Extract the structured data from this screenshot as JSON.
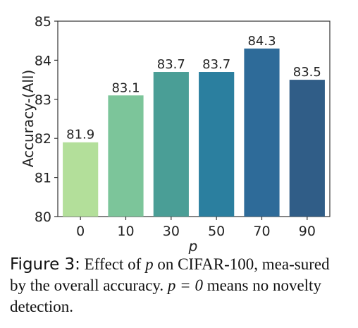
{
  "chart_data": {
    "type": "bar",
    "categories": [
      "0",
      "10",
      "30",
      "50",
      "70",
      "90"
    ],
    "values": [
      81.9,
      83.1,
      83.7,
      83.7,
      84.3,
      83.5
    ],
    "value_labels": [
      "81.9",
      "83.1",
      "83.7",
      "83.7",
      "84.3",
      "83.5"
    ],
    "colors": [
      "#b3df9a",
      "#7cc59a",
      "#4a9e96",
      "#2b7f9f",
      "#2e6b99",
      "#305d87"
    ],
    "title": "",
    "xlabel": "p",
    "ylabel": "Accuracy-(All)",
    "ylim": [
      80,
      85
    ],
    "yticks": [
      80,
      81,
      82,
      83,
      84,
      85
    ],
    "grid": false,
    "legend": "none"
  },
  "caption": {
    "label": "Figure 3:",
    "text_1": "Effect of",
    "math_1": "p",
    "text_2": "on CIFAR-100, mea-sured by the overall accuracy.",
    "math_2": "p = 0",
    "text_3": "means no novelty detection."
  }
}
